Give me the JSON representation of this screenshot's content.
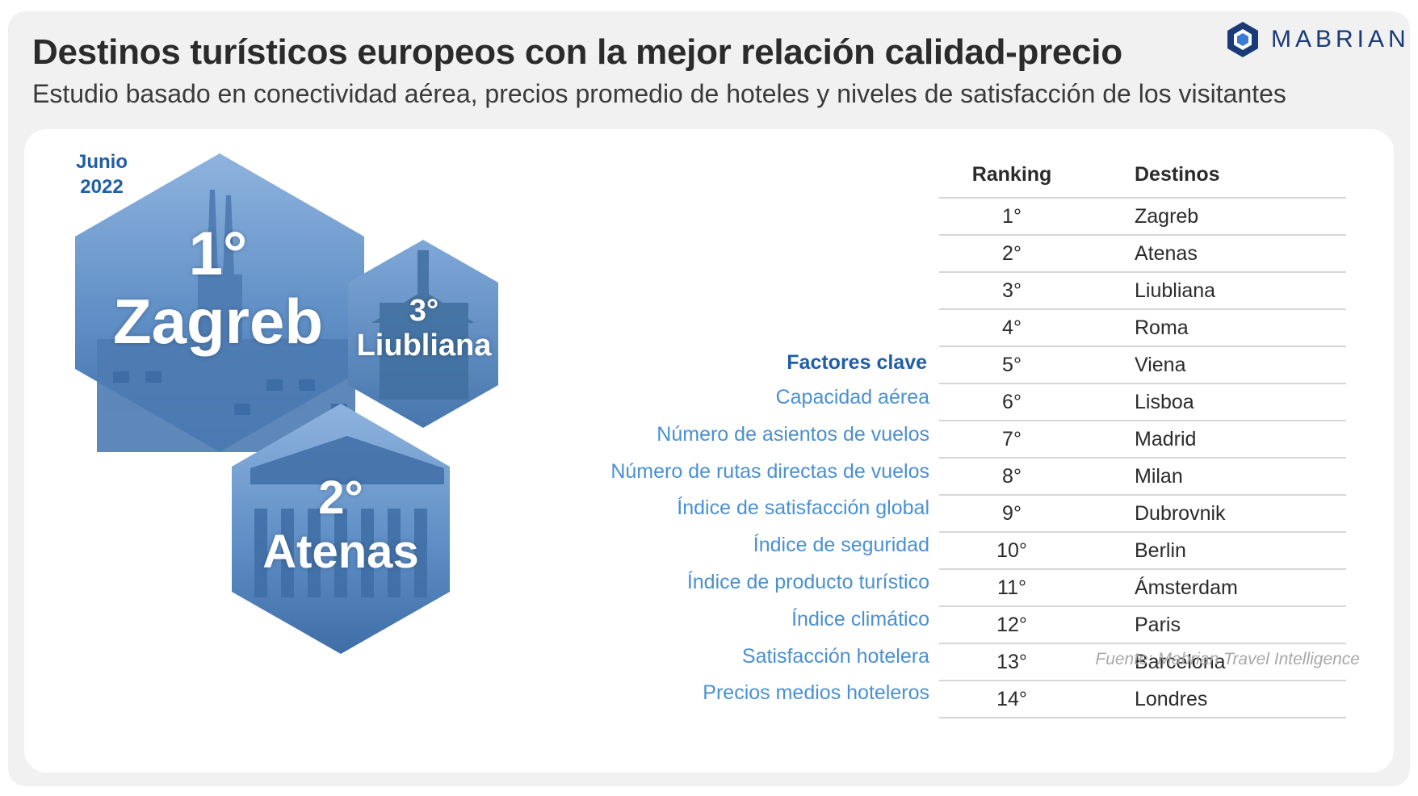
{
  "header": {
    "title": "Destinos turísticos europeos con la mejor relación calidad-precio",
    "subtitle": "Estudio basado en conectividad aérea, precios promedio de hoteles y niveles de satisfacción de los visitantes"
  },
  "logo": {
    "text": "MABRIAN",
    "icon": "mabrian-hexagon-logo"
  },
  "date": {
    "line1": "Junio",
    "line2": "2022"
  },
  "highlights": [
    {
      "rank": "1°",
      "city": "Zagreb",
      "icon": "cathedral-photo"
    },
    {
      "rank": "3°",
      "city": "Liubliana",
      "icon": "church-photo"
    },
    {
      "rank": "2°",
      "city": "Atenas",
      "icon": "parthenon-photo"
    }
  ],
  "factors": {
    "heading": "Factores clave",
    "items": [
      "Capacidad aérea",
      "Número de asientos de vuelos",
      "Número de rutas directas de vuelos",
      "Índice de satisfacción global",
      "Índice de seguridad",
      "Índice de producto turístico",
      "Índice climático",
      "Satisfacción hotelera",
      "Precios medios hoteleros"
    ]
  },
  "table": {
    "headers": [
      "Ranking",
      "Destinos"
    ],
    "rows": [
      [
        "1°",
        "Zagreb"
      ],
      [
        "2°",
        "Atenas"
      ],
      [
        "3°",
        "Liubliana"
      ],
      [
        "4°",
        "Roma"
      ],
      [
        "5°",
        "Viena"
      ],
      [
        "6°",
        "Lisboa"
      ],
      [
        "7°",
        "Madrid"
      ],
      [
        "8°",
        "Milan"
      ],
      [
        "9°",
        "Dubrovnik"
      ],
      [
        "10°",
        "Berlin"
      ],
      [
        "11°",
        "Ámsterdam"
      ],
      [
        "12°",
        "Paris"
      ],
      [
        "13°",
        "Barcelona"
      ],
      [
        "14°",
        "Londres"
      ]
    ]
  },
  "source": "Fuente: Mabrian Travel Intelligence",
  "colors": {
    "accent": "#1f5ea8",
    "factor_text": "#4a90d2",
    "hex_fill": "#6f9ccf",
    "logo": "#1a3a78"
  }
}
